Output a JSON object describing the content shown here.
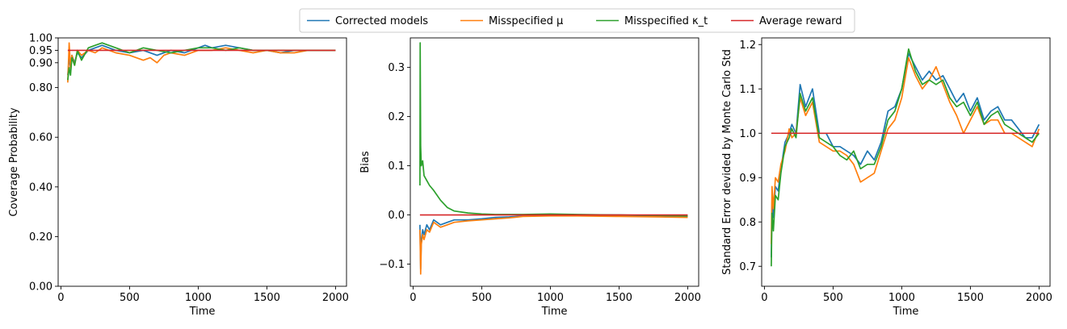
{
  "legend": {
    "placement": "top-center",
    "entries": [
      {
        "label": "Corrected models",
        "color": "#1f77b4"
      },
      {
        "label": "Misspecified μ",
        "color": "#ff7f0e"
      },
      {
        "label": "Misspecified κ_t",
        "color": "#2ca02c"
      },
      {
        "label": "Average reward",
        "color": "#d62728"
      }
    ]
  },
  "chart_data": [
    {
      "type": "line",
      "xlabel": "Time",
      "ylabel": "Coverage Probability",
      "xlim": [
        -20,
        2080
      ],
      "ylim": [
        0.0,
        1.0
      ],
      "xticks": [
        0,
        500,
        1000,
        1500,
        2000
      ],
      "yticks": [
        0.0,
        0.2,
        0.4,
        0.6,
        0.8,
        0.9,
        0.95,
        1.0
      ],
      "ytick_labels": [
        "0.00",
        "0.20",
        "0.40",
        "0.60",
        "0.80",
        "0.90",
        "0.95",
        "1.00"
      ],
      "reference": {
        "name": "Average reward",
        "x": [
          50,
          2000
        ],
        "y": [
          0.95,
          0.95
        ],
        "color": "#d62728"
      },
      "series": [
        {
          "name": "Corrected models",
          "color": "#1f77b4",
          "x": [
            50,
            60,
            70,
            80,
            100,
            120,
            150,
            200,
            250,
            300,
            400,
            500,
            600,
            700,
            800,
            900,
            1000,
            1050,
            1100,
            1200,
            1300,
            1400,
            1500,
            1600,
            1700,
            1800,
            1900,
            2000
          ],
          "y": [
            0.85,
            0.92,
            0.88,
            0.93,
            0.9,
            0.94,
            0.92,
            0.95,
            0.96,
            0.97,
            0.95,
            0.94,
            0.95,
            0.93,
            0.95,
            0.94,
            0.96,
            0.97,
            0.96,
            0.97,
            0.96,
            0.95,
            0.95,
            0.94,
            0.95,
            0.95,
            0.95,
            0.95
          ]
        },
        {
          "name": "Misspecified μ",
          "color": "#ff7f0e",
          "x": [
            50,
            60,
            70,
            80,
            100,
            120,
            150,
            200,
            250,
            300,
            400,
            500,
            600,
            650,
            700,
            750,
            800,
            900,
            1000,
            1100,
            1200,
            1300,
            1400,
            1500,
            1600,
            1700,
            1800,
            1900,
            2000
          ],
          "y": [
            0.82,
            0.98,
            0.88,
            0.93,
            0.89,
            0.95,
            0.93,
            0.95,
            0.94,
            0.96,
            0.94,
            0.93,
            0.91,
            0.92,
            0.9,
            0.93,
            0.94,
            0.93,
            0.95,
            0.95,
            0.96,
            0.95,
            0.94,
            0.95,
            0.94,
            0.94,
            0.95,
            0.95,
            0.95
          ]
        },
        {
          "name": "Misspecified κ_t",
          "color": "#2ca02c",
          "x": [
            50,
            60,
            70,
            80,
            100,
            120,
            150,
            200,
            250,
            300,
            400,
            500,
            600,
            700,
            800,
            900,
            1000,
            1100,
            1200,
            1300,
            1400,
            1500,
            1600,
            1700,
            1800,
            1900,
            2000
          ],
          "y": [
            0.83,
            0.88,
            0.85,
            0.92,
            0.89,
            0.95,
            0.91,
            0.96,
            0.97,
            0.98,
            0.96,
            0.94,
            0.96,
            0.95,
            0.94,
            0.95,
            0.96,
            0.96,
            0.95,
            0.96,
            0.95,
            0.95,
            0.95,
            0.95,
            0.95,
            0.95,
            0.95
          ]
        }
      ]
    },
    {
      "type": "line",
      "xlabel": "Time",
      "ylabel": "Bias",
      "xlim": [
        -20,
        2080
      ],
      "ylim": [
        -0.145,
        0.36
      ],
      "xticks": [
        0,
        500,
        1000,
        1500,
        2000
      ],
      "yticks": [
        -0.1,
        0.0,
        0.1,
        0.2,
        0.3
      ],
      "ytick_labels": [
        "−0.1",
        "0.0",
        "0.1",
        "0.2",
        "0.3"
      ],
      "reference": {
        "name": "Average reward",
        "x": [
          50,
          2000
        ],
        "y": [
          0.0,
          0.0
        ],
        "color": "#d62728"
      },
      "series": [
        {
          "name": "Corrected models",
          "color": "#1f77b4",
          "x": [
            50,
            55,
            60,
            70,
            80,
            100,
            120,
            150,
            200,
            250,
            300,
            400,
            500,
            600,
            700,
            800,
            1000,
            1200,
            1500,
            1800,
            2000
          ],
          "y": [
            -0.02,
            -0.11,
            -0.05,
            -0.03,
            -0.04,
            -0.02,
            -0.03,
            -0.01,
            -0.02,
            -0.015,
            -0.01,
            -0.01,
            -0.008,
            -0.005,
            -0.004,
            -0.002,
            0.0,
            0.0,
            0.0,
            -0.002,
            -0.003
          ]
        },
        {
          "name": "Misspecified μ",
          "color": "#ff7f0e",
          "x": [
            50,
            55,
            60,
            70,
            80,
            100,
            120,
            150,
            200,
            250,
            300,
            400,
            500,
            600,
            700,
            800,
            1000,
            1200,
            1500,
            1800,
            2000
          ],
          "y": [
            -0.03,
            -0.12,
            -0.06,
            -0.04,
            -0.05,
            -0.03,
            -0.035,
            -0.015,
            -0.025,
            -0.02,
            -0.015,
            -0.012,
            -0.01,
            -0.008,
            -0.006,
            -0.003,
            -0.002,
            -0.002,
            -0.003,
            -0.004,
            -0.005
          ]
        },
        {
          "name": "Misspecified κ_t",
          "color": "#2ca02c",
          "x": [
            50,
            52,
            55,
            60,
            70,
            80,
            100,
            120,
            150,
            200,
            250,
            300,
            400,
            500,
            600,
            800,
            1000,
            1200,
            1500,
            1800,
            2000
          ],
          "y": [
            0.06,
            0.35,
            0.14,
            0.1,
            0.11,
            0.08,
            0.07,
            0.06,
            0.05,
            0.03,
            0.015,
            0.008,
            0.004,
            0.002,
            0.001,
            0.001,
            0.002,
            0.001,
            0.0,
            -0.001,
            -0.002
          ]
        }
      ]
    },
    {
      "type": "line",
      "xlabel": "Time",
      "ylabel": "Standard Error devided by Monte Carlo Std",
      "xlim": [
        -20,
        2080
      ],
      "ylim": [
        0.655,
        1.215
      ],
      "xticks": [
        0,
        500,
        1000,
        1500,
        2000
      ],
      "yticks": [
        0.7,
        0.8,
        0.9,
        1.0,
        1.1,
        1.2
      ],
      "ytick_labels": [
        "0.7",
        "0.8",
        "0.9",
        "1.0",
        "1.1",
        "1.2"
      ],
      "reference": {
        "name": "Average reward",
        "x": [
          50,
          2000
        ],
        "y": [
          1.0,
          1.0
        ],
        "color": "#d62728"
      },
      "series": [
        {
          "name": "Corrected models",
          "color": "#1f77b4",
          "x": [
            50,
            55,
            65,
            80,
            100,
            120,
            150,
            180,
            200,
            230,
            260,
            300,
            350,
            400,
            450,
            500,
            550,
            600,
            650,
            700,
            750,
            800,
            850,
            900,
            950,
            1000,
            1050,
            1100,
            1150,
            1200,
            1250,
            1300,
            1350,
            1400,
            1450,
            1500,
            1550,
            1600,
            1650,
            1700,
            1750,
            1800,
            1850,
            1900,
            1950,
            2000
          ],
          "y": [
            0.72,
            0.85,
            0.81,
            0.88,
            0.87,
            0.92,
            0.98,
            1.0,
            1.02,
            1.0,
            1.11,
            1.06,
            1.1,
            1.0,
            1.0,
            0.97,
            0.97,
            0.96,
            0.95,
            0.93,
            0.96,
            0.94,
            0.98,
            1.05,
            1.06,
            1.1,
            1.18,
            1.15,
            1.12,
            1.14,
            1.12,
            1.13,
            1.1,
            1.07,
            1.09,
            1.05,
            1.08,
            1.03,
            1.05,
            1.06,
            1.03,
            1.03,
            1.01,
            0.99,
            0.99,
            1.02
          ]
        },
        {
          "name": "Misspecified μ",
          "color": "#ff7f0e",
          "x": [
            50,
            55,
            65,
            80,
            100,
            120,
            150,
            180,
            200,
            230,
            260,
            300,
            350,
            400,
            450,
            500,
            550,
            600,
            650,
            700,
            750,
            800,
            850,
            900,
            950,
            1000,
            1050,
            1100,
            1150,
            1200,
            1250,
            1300,
            1350,
            1400,
            1450,
            1500,
            1550,
            1600,
            1650,
            1700,
            1750,
            1800,
            1850,
            1900,
            1950,
            2000
          ],
          "y": [
            0.75,
            0.88,
            0.83,
            0.9,
            0.89,
            0.93,
            0.96,
            1.01,
            0.99,
            1.0,
            1.08,
            1.04,
            1.07,
            0.98,
            0.97,
            0.96,
            0.96,
            0.95,
            0.93,
            0.89,
            0.9,
            0.91,
            0.96,
            1.01,
            1.03,
            1.08,
            1.17,
            1.13,
            1.1,
            1.12,
            1.15,
            1.11,
            1.07,
            1.04,
            1.0,
            1.03,
            1.06,
            1.02,
            1.03,
            1.03,
            1.0,
            1.0,
            0.99,
            0.98,
            0.97,
            1.01
          ]
        },
        {
          "name": "Misspecified κ_t",
          "color": "#2ca02c",
          "x": [
            50,
            55,
            65,
            80,
            100,
            120,
            150,
            180,
            200,
            230,
            260,
            300,
            350,
            400,
            450,
            500,
            550,
            600,
            650,
            700,
            750,
            800,
            850,
            900,
            950,
            1000,
            1050,
            1100,
            1150,
            1200,
            1250,
            1300,
            1350,
            1400,
            1450,
            1500,
            1550,
            1600,
            1650,
            1700,
            1750,
            1800,
            1850,
            1900,
            1950,
            2000
          ],
          "y": [
            0.7,
            0.82,
            0.78,
            0.86,
            0.85,
            0.91,
            0.97,
            0.99,
            1.01,
            0.99,
            1.09,
            1.05,
            1.08,
            0.99,
            0.98,
            0.97,
            0.95,
            0.94,
            0.96,
            0.92,
            0.93,
            0.93,
            0.97,
            1.03,
            1.05,
            1.1,
            1.19,
            1.14,
            1.11,
            1.12,
            1.11,
            1.12,
            1.08,
            1.06,
            1.07,
            1.04,
            1.07,
            1.02,
            1.04,
            1.05,
            1.02,
            1.01,
            1.0,
            0.99,
            0.98,
            1.0
          ]
        }
      ]
    }
  ]
}
